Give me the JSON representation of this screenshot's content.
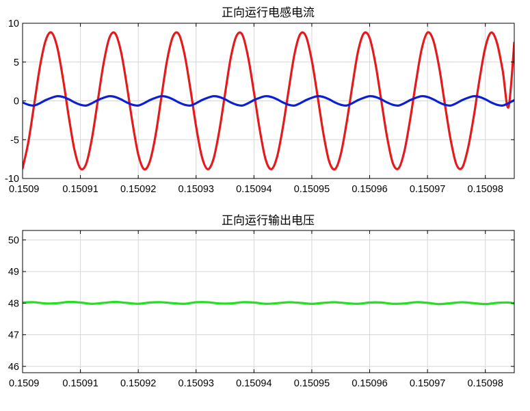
{
  "chart_data": [
    {
      "type": "line",
      "title": "正向运行电感电流",
      "xlabel": "",
      "ylabel": "",
      "xlim": [
        0.1509,
        0.150985
      ],
      "ylim": [
        -10,
        10
      ],
      "grid": true,
      "xticks": [
        0.1509,
        0.15091,
        0.15092,
        0.15093,
        0.15094,
        0.15095,
        0.15096,
        0.15097,
        0.15098
      ],
      "xtick_labels": [
        "0.1509",
        "0.15091",
        "0.15092",
        "0.15093",
        "0.15094",
        "0.15095",
        "0.15096",
        "0.15097",
        "0.15098"
      ],
      "yticks": [
        -10,
        -5,
        0,
        5,
        10
      ],
      "ytick_labels": [
        "-10",
        "-5",
        "0",
        "5",
        "10"
      ],
      "series": [
        {
          "color": "#e41a1c",
          "x": [
            0.1509,
            0.150901,
            0.150902,
            0.150903,
            0.150904,
            0.150905,
            0.150906,
            0.150907,
            0.150908,
            0.150909,
            0.15091,
            0.150911,
            0.150912,
            0.150913,
            0.150914,
            0.150915,
            0.150916,
            0.150917,
            0.150918,
            0.150919,
            0.15092,
            0.150921,
            0.150922,
            0.150923,
            0.150924,
            0.150925,
            0.150926,
            0.150927,
            0.150928,
            0.150929,
            0.15093,
            0.150931,
            0.150932,
            0.150933,
            0.150934,
            0.150935,
            0.150936,
            0.150937,
            0.150938,
            0.150939,
            0.15094,
            0.150941,
            0.150942,
            0.150943,
            0.150944,
            0.150945,
            0.150946,
            0.150947,
            0.150948,
            0.150949,
            0.15095,
            0.150951,
            0.150952,
            0.150953,
            0.150954,
            0.150955,
            0.150956,
            0.150957,
            0.150958,
            0.150959,
            0.15096,
            0.150961,
            0.150962,
            0.150963,
            0.150964,
            0.150965,
            0.150966,
            0.150967,
            0.150968,
            0.150969,
            0.15097,
            0.150971,
            0.150972,
            0.150973,
            0.150974,
            0.150975,
            0.150976,
            0.150977,
            0.150978,
            0.150979,
            0.15098,
            0.150981,
            0.150982,
            0.150983,
            0.150984,
            0.150985
          ],
          "y": [
            -8.7,
            -5.3,
            -0.5,
            4.4,
            7.8,
            8.8,
            6.9,
            2.8,
            -2.1,
            -6.4,
            -8.7,
            -8.1,
            -4.8,
            0.0,
            4.8,
            8.1,
            8.7,
            6.4,
            2.1,
            -2.8,
            -6.9,
            -8.8,
            -7.8,
            -4.4,
            0.5,
            5.3,
            8.3,
            8.6,
            6.0,
            1.6,
            -3.3,
            -7.2,
            -8.8,
            -7.5,
            -3.9,
            0.9,
            5.6,
            8.4,
            8.5,
            5.6,
            1.1,
            -3.7,
            -7.5,
            -8.8,
            -7.2,
            -3.4,
            1.4,
            6.0,
            8.6,
            8.3,
            5.2,
            0.6,
            -4.2,
            -7.8,
            -8.8,
            -6.9,
            -2.9,
            1.9,
            6.4,
            8.7,
            8.1,
            4.8,
            0.1,
            -4.6,
            -8.0,
            -8.7,
            -6.5,
            -2.4,
            2.4,
            6.7,
            8.8,
            7.8,
            4.4,
            -0.4,
            -5.0,
            -8.2,
            -8.6,
            -6.1,
            -2.0,
            2.8,
            6.9,
            8.8,
            7.5,
            3.9,
            -0.8,
            7.5
          ]
        },
        {
          "color": "#0a1fd6",
          "x": [
            0.1509,
            0.150901,
            0.150902,
            0.150903,
            0.150904,
            0.150905,
            0.150906,
            0.150907,
            0.150908,
            0.150909,
            0.15091,
            0.150911,
            0.150912,
            0.150913,
            0.150914,
            0.150915,
            0.150916,
            0.150917,
            0.150918,
            0.150919,
            0.15092,
            0.150921,
            0.150922,
            0.150923,
            0.150924,
            0.150925,
            0.150926,
            0.150927,
            0.150928,
            0.150929,
            0.15093,
            0.150931,
            0.150932,
            0.150933,
            0.150934,
            0.150935,
            0.150936,
            0.150937,
            0.150938,
            0.150939,
            0.15094,
            0.150941,
            0.150942,
            0.150943,
            0.150944,
            0.150945,
            0.150946,
            0.150947,
            0.150948,
            0.150949,
            0.15095,
            0.150951,
            0.150952,
            0.150953,
            0.150954,
            0.150955,
            0.150956,
            0.150957,
            0.150958,
            0.150959,
            0.15096,
            0.150961,
            0.150962,
            0.150963,
            0.150964,
            0.150965,
            0.150966,
            0.150967,
            0.150968,
            0.150969,
            0.15097,
            0.150971,
            0.150972,
            0.150973,
            0.150974,
            0.150975,
            0.150976,
            0.150977,
            0.150978,
            0.150979,
            0.15098,
            0.150981,
            0.150982,
            0.150983,
            0.150984,
            0.150985
          ],
          "y": [
            -0.2,
            -0.5,
            -0.6,
            -0.3,
            0.1,
            0.4,
            0.6,
            0.5,
            0.2,
            -0.2,
            -0.5,
            -0.6,
            -0.3,
            0.1,
            0.4,
            0.6,
            0.5,
            0.2,
            -0.2,
            -0.5,
            -0.6,
            -0.3,
            0.1,
            0.4,
            0.6,
            0.5,
            0.2,
            -0.2,
            -0.5,
            -0.6,
            -0.3,
            0.1,
            0.4,
            0.6,
            0.5,
            0.2,
            -0.2,
            -0.5,
            -0.6,
            -0.3,
            0.1,
            0.4,
            0.6,
            0.5,
            0.2,
            -0.2,
            -0.5,
            -0.6,
            -0.3,
            0.1,
            0.4,
            0.6,
            0.5,
            0.2,
            -0.2,
            -0.5,
            -0.6,
            -0.3,
            0.1,
            0.4,
            0.6,
            0.5,
            0.2,
            -0.2,
            -0.5,
            -0.6,
            -0.3,
            0.1,
            0.4,
            0.6,
            0.5,
            0.2,
            -0.2,
            -0.5,
            -0.6,
            -0.3,
            0.1,
            0.4,
            0.6,
            0.5,
            0.2,
            -0.2,
            -0.5,
            -0.6,
            -0.3,
            0.1
          ]
        }
      ]
    },
    {
      "type": "line",
      "title": "正向运行输出电压",
      "xlabel": "",
      "ylabel": "",
      "xlim": [
        0.1509,
        0.150985
      ],
      "ylim": [
        45.8,
        50.3
      ],
      "grid": true,
      "xticks": [
        0.1509,
        0.15091,
        0.15092,
        0.15093,
        0.15094,
        0.15095,
        0.15096,
        0.15097,
        0.15098
      ],
      "xtick_labels": [
        "0.1509",
        "0.15091",
        "0.15092",
        "0.15093",
        "0.15094",
        "0.15095",
        "0.15096",
        "0.15097",
        "0.15098"
      ],
      "yticks": [
        46,
        47,
        48,
        49,
        50
      ],
      "ytick_labels": [
        "46",
        "47",
        "48",
        "49",
        "50"
      ],
      "series": [
        {
          "color": "#22e01e",
          "x": [
            0.1509,
            0.150902,
            0.150904,
            0.150906,
            0.150908,
            0.15091,
            0.150912,
            0.150914,
            0.150916,
            0.150918,
            0.15092,
            0.150922,
            0.150924,
            0.150926,
            0.150928,
            0.15093,
            0.150932,
            0.150934,
            0.150936,
            0.150938,
            0.15094,
            0.150942,
            0.150944,
            0.150946,
            0.150948,
            0.15095,
            0.150952,
            0.150954,
            0.150956,
            0.150958,
            0.15096,
            0.150962,
            0.150964,
            0.150966,
            0.150968,
            0.15097,
            0.150972,
            0.150974,
            0.150976,
            0.150978,
            0.15098,
            0.150982,
            0.150984,
            0.150985
          ],
          "y": [
            48.02,
            48.03,
            47.99,
            48.0,
            48.04,
            48.02,
            47.98,
            48.01,
            48.04,
            48.01,
            47.98,
            48.02,
            48.03,
            48.0,
            47.98,
            48.03,
            48.03,
            47.99,
            47.99,
            48.03,
            48.02,
            47.98,
            48.0,
            48.03,
            48.01,
            47.98,
            48.01,
            48.03,
            48.0,
            47.98,
            48.02,
            48.02,
            47.98,
            47.99,
            48.03,
            48.01,
            47.97,
            48.0,
            48.03,
            48.0,
            47.97,
            48.01,
            48.02,
            47.99
          ]
        }
      ]
    }
  ]
}
